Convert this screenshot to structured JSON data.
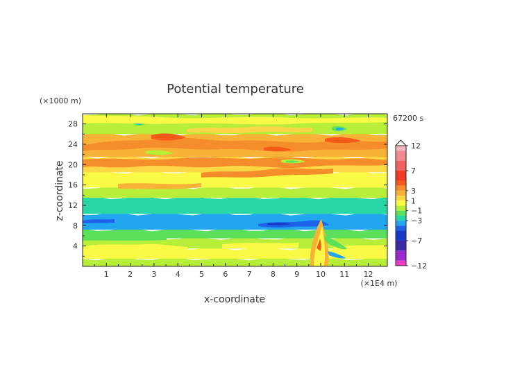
{
  "chart_data": {
    "type": "heatmap",
    "title": "Potential temperature",
    "xlabel": "x-coordinate",
    "ylabel": "z-coordinate",
    "x_unit": "(×1E4 m)",
    "y_unit": "(×1000 m)",
    "time_label": "67200 s",
    "xlim": [
      0,
      12.8
    ],
    "ylim": [
      0,
      30
    ],
    "x_ticks": [
      "1",
      "2",
      "3",
      "4",
      "5",
      "6",
      "7",
      "8",
      "9",
      "10",
      "11",
      "12"
    ],
    "y_ticks": [
      "4",
      "8",
      "12",
      "16",
      "20",
      "24",
      "28"
    ],
    "colorbar_ticks": [
      "12",
      "7",
      "3",
      "1",
      "−1",
      "−3",
      "−7",
      "−12"
    ],
    "colorbar_levels": [
      {
        "max": 12,
        "min": 11,
        "color": "#f6b8c0"
      },
      {
        "max": 11,
        "min": 9,
        "color": "#f08b8f"
      },
      {
        "max": 9,
        "min": 7,
        "color": "#f06262"
      },
      {
        "max": 7,
        "min": 5,
        "color": "#f03a28"
      },
      {
        "max": 5,
        "min": 4,
        "color": "#f45a18"
      },
      {
        "max": 4,
        "min": 3,
        "color": "#f58d2a"
      },
      {
        "max": 3,
        "min": 2,
        "color": "#f8b238"
      },
      {
        "max": 2,
        "min": 1,
        "color": "#fdd844"
      },
      {
        "max": 1,
        "min": 0,
        "color": "#fafa46"
      },
      {
        "max": 0,
        "min": -1,
        "color": "#b6ee3a"
      },
      {
        "max": -1,
        "min": -2,
        "color": "#5ce05a"
      },
      {
        "max": -2,
        "min": -3,
        "color": "#2ad6a6"
      },
      {
        "max": -3,
        "min": -4,
        "color": "#22a6f0"
      },
      {
        "max": -4,
        "min": -5,
        "color": "#1e62e8"
      },
      {
        "max": -5,
        "min": -7,
        "color": "#1a38c8"
      },
      {
        "max": -7,
        "min": -9,
        "color": "#3a2aa8"
      },
      {
        "max": -9,
        "min": -11,
        "color": "#9a2ad0"
      },
      {
        "max": -11,
        "min": -12,
        "color": "#f03ac8"
      }
    ],
    "bands": [
      {
        "z": [
          0,
          1.5
        ],
        "value": "−1 to 0",
        "color": "#b6ee3a"
      },
      {
        "z": [
          1.5,
          3.5
        ],
        "value": "0 to 1",
        "color": "#fafa46"
      },
      {
        "z": [
          3.5,
          5.5
        ],
        "value": "−1 to 0",
        "color": "#b6ee3a"
      },
      {
        "z": [
          5.5,
          7.2
        ],
        "value": "−2 to −1",
        "color": "#5ce05a"
      },
      {
        "z": [
          7.2,
          10.3
        ],
        "value": "−4 to −3",
        "color": "#22a6f0"
      },
      {
        "z": [
          10.3,
          13.5
        ],
        "value": "−3 to −2",
        "color": "#2ad6a6"
      },
      {
        "z": [
          13.5,
          15.5
        ],
        "value": "−1 to 0",
        "color": "#b6ee3a"
      },
      {
        "z": [
          15.5,
          18.5
        ],
        "value": "0 to 1",
        "color": "#fafa46"
      },
      {
        "z": [
          18.5,
          21.5
        ],
        "value": "1 to 3",
        "color": "#fdd844"
      },
      {
        "z": [
          21.5,
          26
        ],
        "value": "2 to 4",
        "color": "#f8b238"
      },
      {
        "z": [
          26,
          30
        ],
        "value": "−1 to 1",
        "color": "#b6ee3a"
      }
    ]
  }
}
